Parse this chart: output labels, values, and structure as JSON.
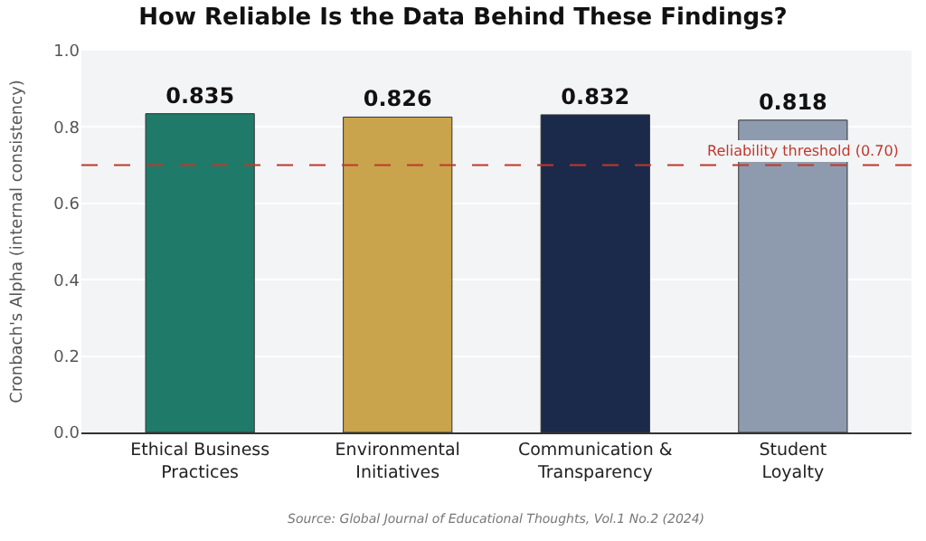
{
  "chart_data": {
    "type": "bar",
    "title": "How Reliable Is the Data Behind These Findings?",
    "ylabel": "Cronbach's Alpha (internal consistency)",
    "categories": [
      "Ethical Business\nPractices",
      "Environmental\nInitiatives",
      "Communication &\nTransparency",
      "Student\nLoyalty"
    ],
    "values": [
      0.835,
      0.826,
      0.832,
      0.818
    ],
    "colors": [
      "#1f7a6a",
      "#c9a44c",
      "#1b2a4a",
      "#8e9bae"
    ],
    "data_labels": true,
    "ylim": [
      0,
      1.0
    ],
    "yticks": [
      {
        "value": 0,
        "label": "0.0"
      },
      {
        "value": 0.2,
        "label": "0.2"
      },
      {
        "value": 0.4,
        "label": "0.4"
      },
      {
        "value": 0.6,
        "label": "0.6"
      },
      {
        "value": 0.8,
        "label": "0.8"
      },
      {
        "value": 1.0,
        "label": "1.0"
      }
    ],
    "grid": "y",
    "ref_lines": [
      {
        "axis": "y",
        "value": 0.7,
        "label": "Reliability threshold (0.70)",
        "color": "#c0392b",
        "line_style": "dashed"
      }
    ],
    "annotations": [
      "Source: Global Journal of Educational Thoughts, Vol.1 No.2 (2024)"
    ]
  }
}
